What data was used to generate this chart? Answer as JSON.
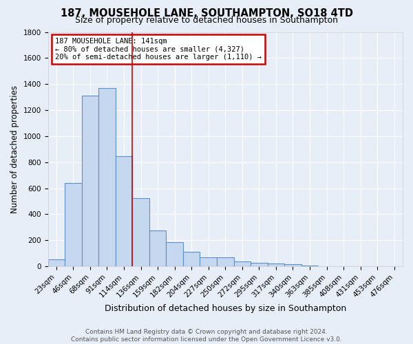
{
  "title": "187, MOUSEHOLE LANE, SOUTHAMPTON, SO18 4TD",
  "subtitle": "Size of property relative to detached houses in Southampton",
  "xlabel": "Distribution of detached houses by size in Southampton",
  "ylabel": "Number of detached properties",
  "bar_color": "#c5d8f0",
  "bar_edge_color": "#5b8fc9",
  "background_color": "#e8eef8",
  "grid_color": "#ffffff",
  "categories": [
    "23sqm",
    "46sqm",
    "68sqm",
    "91sqm",
    "114sqm",
    "136sqm",
    "159sqm",
    "182sqm",
    "204sqm",
    "227sqm",
    "250sqm",
    "272sqm",
    "295sqm",
    "317sqm",
    "340sqm",
    "363sqm",
    "385sqm",
    "408sqm",
    "431sqm",
    "453sqm",
    "476sqm"
  ],
  "values": [
    55,
    640,
    1310,
    1370,
    845,
    525,
    275,
    185,
    110,
    70,
    70,
    35,
    25,
    20,
    15,
    5,
    0,
    0,
    0,
    0,
    0
  ],
  "property_line_color": "#cc0000",
  "annotation_text": "187 MOUSEHOLE LANE: 141sqm\n← 80% of detached houses are smaller (4,327)\n20% of semi-detached houses are larger (1,110) →",
  "annotation_box_color": "#cc0000",
  "annotation_text_color": "#000000",
  "ylim": [
    0,
    1800
  ],
  "footer": "Contains HM Land Registry data © Crown copyright and database right 2024.\nContains public sector information licensed under the Open Government Licence v3.0.",
  "title_fontsize": 10.5,
  "subtitle_fontsize": 9,
  "xlabel_fontsize": 9,
  "ylabel_fontsize": 8.5,
  "tick_fontsize": 7.5,
  "footer_fontsize": 6.5
}
